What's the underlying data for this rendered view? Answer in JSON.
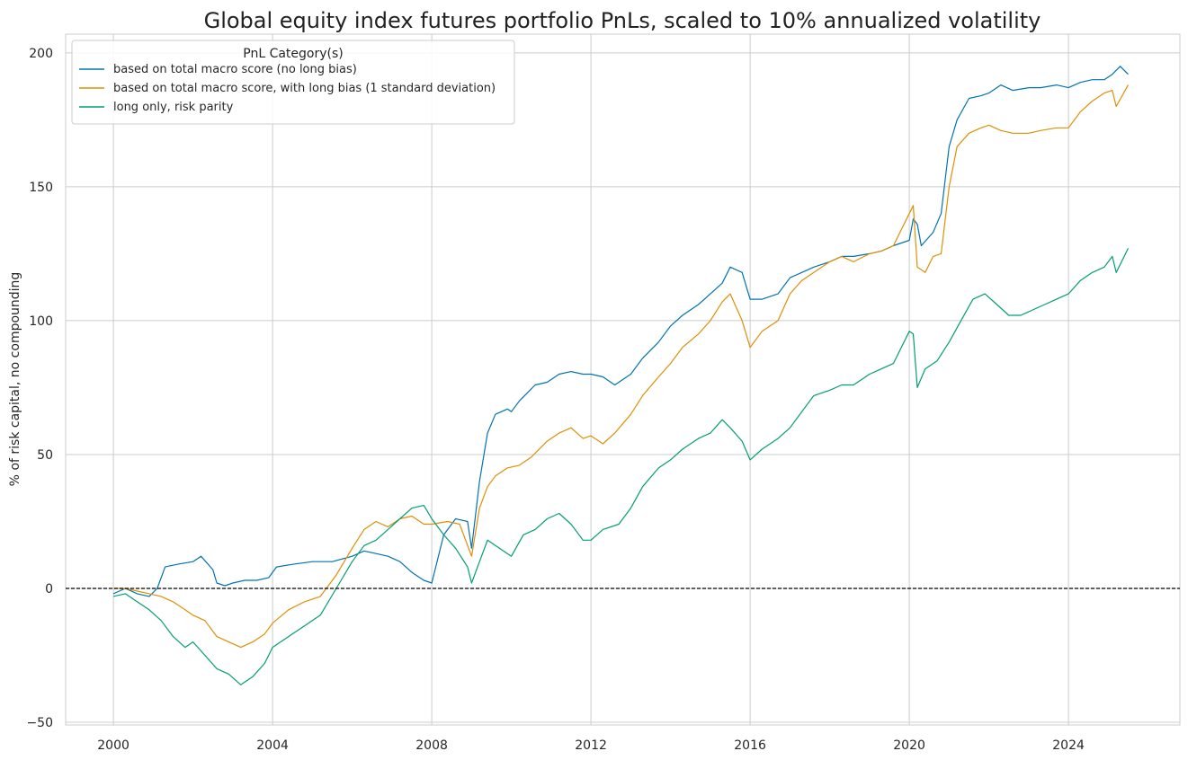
{
  "chart_data": {
    "type": "line",
    "title": "Global equity index futures portfolio PnLs, scaled to 10% annualized volatility",
    "xlabel": "",
    "ylabel": "% of risk capital, no compounding",
    "xlim": [
      1998.8,
      2026.8
    ],
    "ylim": [
      -51,
      207
    ],
    "x_ticks": [
      2000,
      2004,
      2008,
      2012,
      2016,
      2020,
      2024
    ],
    "x_tick_labels": [
      "2000",
      "2004",
      "2008",
      "2012",
      "2016",
      "2020",
      "2024"
    ],
    "y_ticks": [
      -50,
      0,
      50,
      100,
      150,
      200
    ],
    "y_tick_labels": [
      "−50",
      "0",
      "50",
      "100",
      "150",
      "200"
    ],
    "grid": true,
    "reference_line": {
      "y": 0,
      "style": "dashed",
      "color": "#000000"
    },
    "legend": {
      "title": "PnL Category(s)",
      "placement": "upper-left"
    },
    "series": [
      {
        "name": "based on total macro score (no long bias)",
        "color": "#0173b2",
        "x": [
          2000.0,
          2000.3,
          2000.6,
          2000.9,
          2001.1,
          2001.3,
          2001.6,
          2002.0,
          2002.2,
          2002.5,
          2002.6,
          2002.8,
          2003.0,
          2003.3,
          2003.6,
          2003.9,
          2004.1,
          2004.5,
          2005.0,
          2005.5,
          2006.0,
          2006.3,
          2006.6,
          2006.9,
          2007.2,
          2007.5,
          2007.8,
          2008.0,
          2008.3,
          2008.6,
          2008.9,
          2009.0,
          2009.2,
          2009.4,
          2009.6,
          2009.9,
          2010.0,
          2010.2,
          2010.4,
          2010.6,
          2010.9,
          2011.2,
          2011.5,
          2011.8,
          2012.0,
          2012.3,
          2012.6,
          2013.0,
          2013.3,
          2013.7,
          2014.0,
          2014.3,
          2014.7,
          2015.0,
          2015.3,
          2015.5,
          2015.8,
          2016.0,
          2016.3,
          2016.7,
          2017.0,
          2017.3,
          2017.6,
          2018.0,
          2018.3,
          2018.6,
          2019.0,
          2019.3,
          2019.6,
          2020.0,
          2020.1,
          2020.2,
          2020.3,
          2020.6,
          2020.8,
          2021.0,
          2021.2,
          2021.5,
          2021.8,
          2022.0,
          2022.3,
          2022.6,
          2023.0,
          2023.3,
          2023.7,
          2024.0,
          2024.3,
          2024.6,
          2024.9,
          2025.1,
          2025.3,
          2025.5
        ],
        "values": [
          -2,
          0,
          -2,
          -3,
          0,
          8,
          9,
          10,
          12,
          7,
          2,
          1,
          2,
          3,
          3,
          4,
          8,
          9,
          10,
          10,
          12,
          14,
          13,
          12,
          10,
          6,
          3,
          2,
          20,
          26,
          25,
          15,
          40,
          58,
          65,
          67,
          66,
          70,
          73,
          76,
          77,
          80,
          81,
          80,
          80,
          79,
          76,
          80,
          86,
          92,
          98,
          102,
          106,
          110,
          114,
          120,
          118,
          108,
          108,
          110,
          116,
          118,
          120,
          122,
          124,
          124,
          125,
          126,
          128,
          130,
          138,
          136,
          128,
          133,
          140,
          165,
          175,
          183,
          184,
          185,
          188,
          186,
          187,
          187,
          188,
          187,
          189,
          190,
          190,
          192,
          195,
          192
        ]
      },
      {
        "name": "based on total macro score, with long bias (1 standard deviation)",
        "color": "#de8f05",
        "x": [
          2000.0,
          2000.3,
          2000.6,
          2000.9,
          2001.2,
          2001.5,
          2001.8,
          2002.0,
          2002.3,
          2002.6,
          2002.9,
          2003.2,
          2003.5,
          2003.8,
          2004.0,
          2004.4,
          2004.8,
          2005.2,
          2005.6,
          2006.0,
          2006.3,
          2006.6,
          2006.9,
          2007.2,
          2007.5,
          2007.8,
          2008.0,
          2008.4,
          2008.7,
          2009.0,
          2009.2,
          2009.4,
          2009.6,
          2009.9,
          2010.2,
          2010.5,
          2010.9,
          2011.2,
          2011.5,
          2011.8,
          2012.0,
          2012.3,
          2012.6,
          2013.0,
          2013.3,
          2013.7,
          2014.0,
          2014.3,
          2014.7,
          2015.0,
          2015.3,
          2015.5,
          2015.8,
          2016.0,
          2016.3,
          2016.7,
          2017.0,
          2017.3,
          2017.6,
          2018.0,
          2018.3,
          2018.6,
          2019.0,
          2019.3,
          2019.6,
          2020.0,
          2020.1,
          2020.2,
          2020.4,
          2020.6,
          2020.8,
          2021.0,
          2021.2,
          2021.5,
          2021.8,
          2022.0,
          2022.3,
          2022.6,
          2023.0,
          2023.3,
          2023.7,
          2024.0,
          2024.3,
          2024.6,
          2024.9,
          2025.1,
          2025.2,
          2025.5
        ],
        "values": [
          0,
          0,
          -1,
          -2,
          -3,
          -5,
          -8,
          -10,
          -12,
          -18,
          -20,
          -22,
          -20,
          -17,
          -13,
          -8,
          -5,
          -3,
          5,
          15,
          22,
          25,
          23,
          26,
          27,
          24,
          24,
          25,
          24,
          12,
          30,
          38,
          42,
          45,
          46,
          49,
          55,
          58,
          60,
          56,
          57,
          54,
          58,
          65,
          72,
          79,
          84,
          90,
          95,
          100,
          107,
          110,
          100,
          90,
          96,
          100,
          110,
          115,
          118,
          122,
          124,
          122,
          125,
          126,
          128,
          140,
          143,
          120,
          118,
          124,
          125,
          150,
          165,
          170,
          172,
          173,
          171,
          170,
          170,
          171,
          172,
          172,
          178,
          182,
          185,
          186,
          180,
          188
        ]
      },
      {
        "name": "long only, risk parity",
        "color": "#029e73",
        "x": [
          2000.0,
          2000.3,
          2000.6,
          2000.9,
          2001.2,
          2001.5,
          2001.8,
          2002.0,
          2002.3,
          2002.6,
          2002.9,
          2003.2,
          2003.5,
          2003.8,
          2004.0,
          2004.4,
          2004.8,
          2005.2,
          2005.6,
          2006.0,
          2006.3,
          2006.6,
          2006.9,
          2007.2,
          2007.5,
          2007.8,
          2008.0,
          2008.3,
          2008.6,
          2008.9,
          2009.0,
          2009.2,
          2009.4,
          2009.7,
          2010.0,
          2010.3,
          2010.6,
          2010.9,
          2011.2,
          2011.5,
          2011.8,
          2012.0,
          2012.3,
          2012.7,
          2013.0,
          2013.3,
          2013.7,
          2014.0,
          2014.3,
          2014.7,
          2015.0,
          2015.3,
          2015.5,
          2015.8,
          2016.0,
          2016.3,
          2016.7,
          2017.0,
          2017.3,
          2017.6,
          2018.0,
          2018.3,
          2018.6,
          2019.0,
          2019.3,
          2019.6,
          2020.0,
          2020.1,
          2020.2,
          2020.4,
          2020.7,
          2021.0,
          2021.3,
          2021.6,
          2021.9,
          2022.2,
          2022.5,
          2022.8,
          2023.1,
          2023.4,
          2023.7,
          2024.0,
          2024.3,
          2024.6,
          2024.9,
          2025.1,
          2025.2,
          2025.5
        ],
        "values": [
          -3,
          -2,
          -5,
          -8,
          -12,
          -18,
          -22,
          -20,
          -25,
          -30,
          -32,
          -36,
          -33,
          -28,
          -22,
          -18,
          -14,
          -10,
          0,
          10,
          16,
          18,
          22,
          26,
          30,
          31,
          26,
          20,
          15,
          8,
          2,
          10,
          18,
          15,
          12,
          20,
          22,
          26,
          28,
          24,
          18,
          18,
          22,
          24,
          30,
          38,
          45,
          48,
          52,
          56,
          58,
          63,
          60,
          55,
          48,
          52,
          56,
          60,
          66,
          72,
          74,
          76,
          76,
          80,
          82,
          84,
          96,
          95,
          75,
          82,
          85,
          92,
          100,
          108,
          110,
          106,
          102,
          102,
          104,
          106,
          108,
          110,
          115,
          118,
          120,
          124,
          118,
          127
        ]
      }
    ]
  }
}
